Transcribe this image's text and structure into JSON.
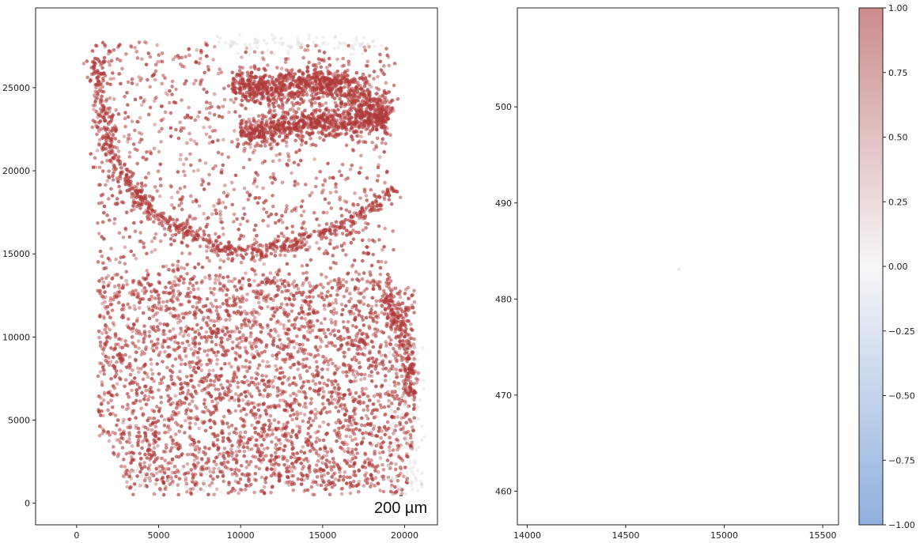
{
  "chart_data": [
    {
      "type": "scatter",
      "title": "",
      "xlabel": "",
      "ylabel": "",
      "xlim": [
        -2500,
        22000
      ],
      "ylim": [
        -1300,
        29800
      ],
      "xticks": [
        0,
        5000,
        10000,
        15000,
        20000
      ],
      "xtick_labels": [
        "0",
        "5000",
        "10000",
        "15000",
        "20000"
      ],
      "yticks": [
        0,
        5000,
        10000,
        15000,
        20000,
        25000
      ],
      "ytick_labels": [
        "0",
        "5000",
        "10000",
        "15000",
        "20000",
        "25000"
      ],
      "color_value_range": [
        -1.0,
        1.0
      ],
      "scale_bar_label": "200 µm",
      "point_color": "#b03a3a",
      "grid": false,
      "regions": [
        {
          "name": "upper band",
          "path": [
            [
              9500,
              25200
            ],
            [
              11500,
              24900
            ],
            [
              13500,
              25300
            ],
            [
              15500,
              25400
            ],
            [
              17500,
              24300
            ],
            [
              19000,
              23300
            ]
          ],
          "width": 1100
        },
        {
          "name": "lower band",
          "path": [
            [
              10000,
              22300
            ],
            [
              12500,
              22600
            ],
            [
              15000,
              23000
            ],
            [
              17500,
              23000
            ],
            [
              19000,
              22900
            ]
          ],
          "width": 1000
        },
        {
          "name": "arc",
          "path": [
            [
              3500,
              18400
            ],
            [
              5500,
              16800
            ],
            [
              8000,
              15600
            ],
            [
              10500,
              15100
            ],
            [
              13000,
              15500
            ],
            [
              15500,
              16400
            ],
            [
              18000,
              17800
            ],
            [
              19500,
              18900
            ]
          ],
          "width": 600
        },
        {
          "name": "left edge",
          "path": [
            [
              1200,
              26800
            ],
            [
              1600,
              23500
            ],
            [
              2200,
              21000
            ],
            [
              3000,
              19500
            ],
            [
              4200,
              18200
            ]
          ],
          "width": 700
        },
        {
          "name": "right edge",
          "path": [
            [
              19000,
              12500
            ],
            [
              19700,
              10500
            ],
            [
              20200,
              8500
            ],
            [
              20400,
              6500
            ]
          ],
          "width": 500
        }
      ]
    },
    {
      "type": "scatter",
      "title": "",
      "xlabel": "",
      "ylabel": "",
      "xlim": [
        13950,
        15580
      ],
      "ylim": [
        456.5,
        510.3
      ],
      "xticks": [
        14000,
        14500,
        15000,
        15500
      ],
      "xtick_labels": [
        "14000",
        "14500",
        "15000",
        "15500"
      ],
      "yticks": [
        460,
        470,
        480,
        490,
        500
      ],
      "ytick_labels": [
        "460",
        "470",
        "480",
        "490",
        "500"
      ],
      "points": [
        {
          "x": 14770,
          "y": 483.1,
          "value": 0.02
        }
      ],
      "grid": false
    }
  ],
  "colorbar": {
    "ticks": [
      -1.0,
      -0.75,
      -0.5,
      -0.25,
      0.0,
      0.25,
      0.5,
      0.75,
      1.0
    ],
    "tick_labels": [
      "−1.00",
      "−0.75",
      "−0.50",
      "−0.25",
      "0.00",
      "0.25",
      "0.50",
      "0.75",
      "1.00"
    ],
    "range": [
      -1.0,
      1.0
    ],
    "colors": {
      "low": "#8fb0df",
      "mid": "#f7f7f7",
      "high": "#cd8c8c"
    }
  }
}
